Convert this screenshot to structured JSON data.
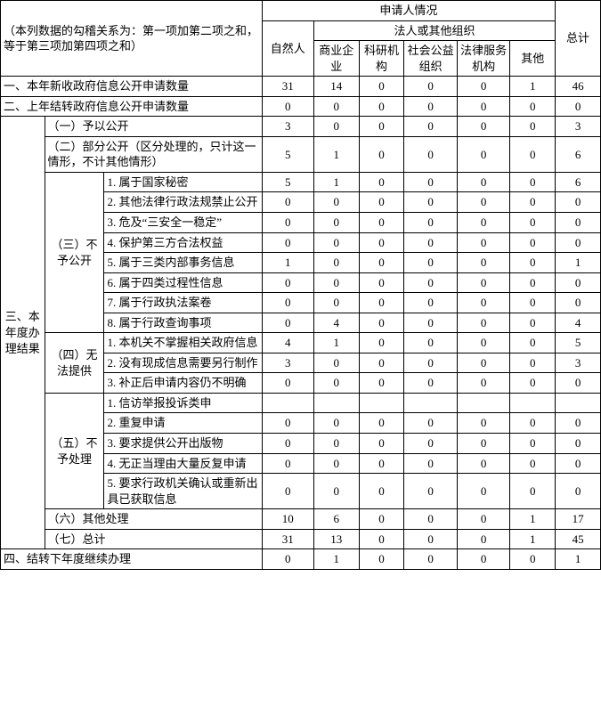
{
  "header": {
    "note": "（本列数据的勾稽关系为：第一项加第二项之和，等于第三项加第四项之和）",
    "applicant": "申请人情况",
    "natural": "自然人",
    "legal": "法人或其他组织",
    "legal_cols": [
      "商业企业",
      "科研机构",
      "社会公益组织",
      "法律服务机构",
      "其他"
    ],
    "total": "总计"
  },
  "rows": {
    "r1": {
      "label": "一、本年新收政府信息公开申请数量",
      "v": [
        "31",
        "14",
        "0",
        "0",
        "0",
        "1",
        "46"
      ]
    },
    "r2": {
      "label": "二、上年结转政府信息公开申请数量",
      "v": [
        "0",
        "0",
        "0",
        "0",
        "0",
        "0",
        "0"
      ]
    },
    "sec3": "三、本年度办理结果",
    "g1": {
      "label": "（一）予以公开",
      "v": [
        "3",
        "0",
        "0",
        "0",
        "0",
        "0",
        "3"
      ]
    },
    "g2": {
      "label": "（二）部分公开（区分处理的，只计这一情形，不计其他情形）",
      "v": [
        "5",
        "1",
        "0",
        "0",
        "0",
        "0",
        "6"
      ]
    },
    "g3": {
      "label": "（三）不予公开",
      "items": [
        {
          "label": "1. 属于国家秘密",
          "v": [
            "5",
            "1",
            "0",
            "0",
            "0",
            "0",
            "6"
          ]
        },
        {
          "label": "2. 其他法律行政法规禁止公开",
          "v": [
            "0",
            "0",
            "0",
            "0",
            "0",
            "0",
            "0"
          ]
        },
        {
          "label": "3. 危及“三安全一稳定”",
          "v": [
            "0",
            "0",
            "0",
            "0",
            "0",
            "0",
            "0"
          ]
        },
        {
          "label": "4. 保护第三方合法权益",
          "v": [
            "0",
            "0",
            "0",
            "0",
            "0",
            "0",
            "0"
          ]
        },
        {
          "label": "5. 属于三类内部事务信息",
          "v": [
            "1",
            "0",
            "0",
            "0",
            "0",
            "0",
            "1"
          ]
        },
        {
          "label": "6. 属于四类过程性信息",
          "v": [
            "0",
            "0",
            "0",
            "0",
            "0",
            "0",
            "0"
          ]
        },
        {
          "label": "7. 属于行政执法案卷",
          "v": [
            "0",
            "0",
            "0",
            "0",
            "0",
            "0",
            "0"
          ]
        },
        {
          "label": "8. 属于行政查询事项",
          "v": [
            "0",
            "4",
            "0",
            "0",
            "0",
            "0",
            "4"
          ]
        }
      ]
    },
    "g4": {
      "label": "（四）无法提供",
      "items": [
        {
          "label": "1. 本机关不掌握相关政府信息",
          "v": [
            "4",
            "1",
            "0",
            "0",
            "0",
            "0",
            "5"
          ]
        },
        {
          "label": "2. 没有现成信息需要另行制作",
          "v": [
            "3",
            "0",
            "0",
            "0",
            "0",
            "0",
            "3"
          ]
        },
        {
          "label": "3. 补正后申请内容仍不明确",
          "v": [
            "0",
            "0",
            "0",
            "0",
            "0",
            "0",
            "0"
          ]
        }
      ]
    },
    "g5": {
      "label": "（五）不予处理",
      "items": [
        {
          "label": "1. 信访举报投诉类申",
          "v": [
            "",
            "",
            "",
            "",
            "",
            "",
            ""
          ]
        },
        {
          "label": "2. 重复申请",
          "v": [
            "0",
            "0",
            "0",
            "0",
            "0",
            "0",
            "0"
          ]
        },
        {
          "label": "3. 要求提供公开出版物",
          "v": [
            "0",
            "0",
            "0",
            "0",
            "0",
            "0",
            "0"
          ]
        },
        {
          "label": "4. 无正当理由大量反复申请",
          "v": [
            "0",
            "0",
            "0",
            "0",
            "0",
            "0",
            "0"
          ]
        },
        {
          "label": "5. 要求行政机关确认或重新出具已获取信息",
          "v": [
            "0",
            "0",
            "0",
            "0",
            "0",
            "0",
            "0"
          ]
        }
      ]
    },
    "g6": {
      "label": "（六）其他处理",
      "v": [
        "10",
        "6",
        "0",
        "0",
        "0",
        "1",
        "17"
      ]
    },
    "g7": {
      "label": "（七）总计",
      "v": [
        "31",
        "13",
        "0",
        "0",
        "0",
        "1",
        "45"
      ]
    },
    "r4": {
      "label": "四、结转下年度继续办理",
      "v": [
        "0",
        "1",
        "0",
        "0",
        "0",
        "0",
        "1"
      ]
    }
  }
}
